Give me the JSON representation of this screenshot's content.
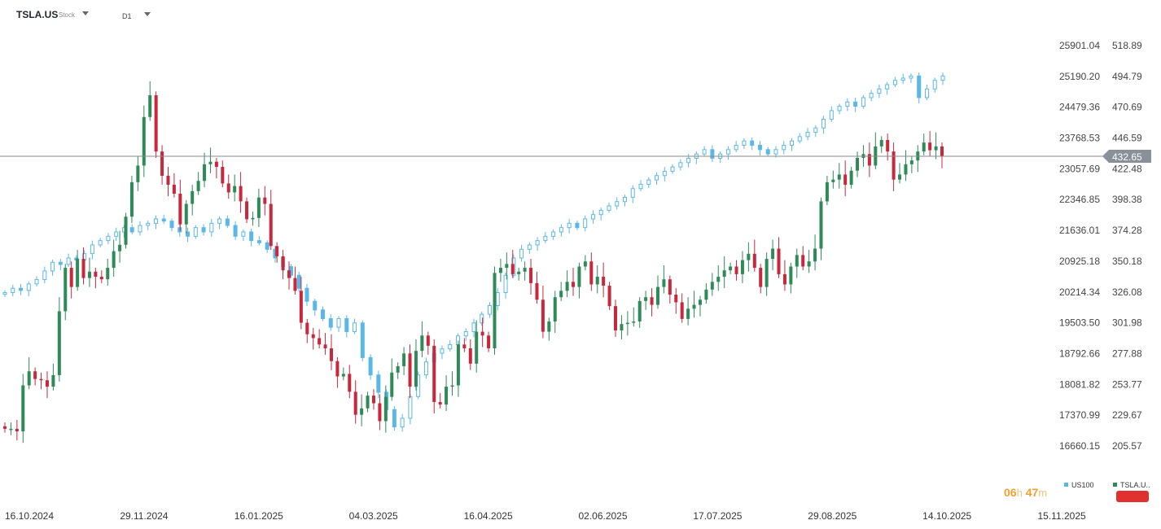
{
  "header": {
    "symbol": "TSLA.US",
    "symbol_type": "Stock",
    "timeframe": "D1"
  },
  "countdown": {
    "hours": "06",
    "h_unit": "h",
    "minutes": "47",
    "m_unit": "m"
  },
  "colors": {
    "up": "#2e8b57",
    "down": "#c8283c",
    "compare": "#5bb8e6",
    "price_line": "#8a8a8a",
    "label_bg": "#8a9099",
    "timer": "#f0a030",
    "badge": "#e03030"
  },
  "chart_data": {
    "type": "candlestick",
    "x_tick_labels": [
      "16.10.2024",
      "29.11.2024",
      "16.01.2025",
      "04.03.2025",
      "16.04.2025",
      "02.06.2025",
      "17.07.2025",
      "29.08.2025",
      "14.10.2025",
      "15.11.2025"
    ],
    "y_left_ticks": [
      "25901.04",
      "25190.20",
      "24479.36",
      "23768.53",
      "23057.69",
      "22346.85",
      "21636.01",
      "20925.18",
      "20214.34",
      "19503.50",
      "18792.66",
      "18081.82",
      "17370.99",
      "16660.15"
    ],
    "y_right_ticks": [
      "518.89",
      "494.79",
      "470.69",
      "446.59",
      "422.48",
      "398.38",
      "374.28",
      "350.18",
      "326.08",
      "301.98",
      "277.88",
      "253.77",
      "229.67",
      "205.57"
    ],
    "last_price_label": "432.65",
    "last_price": 432.65,
    "legend": [
      {
        "name": "US100",
        "color": "#5bb8e6"
      },
      {
        "name": "TSLA.U..",
        "color": "#2e8b57"
      }
    ],
    "series": [
      {
        "name": "TSLA.US",
        "scale": "right",
        "closes_approx": [
          219,
          219,
          217,
          253,
          264,
          258,
          257,
          252,
          261,
          311,
          345,
          330,
          352,
          337,
          342,
          338,
          336,
          345,
          358,
          363,
          385,
          412,
          425,
          463,
          480,
          436,
          417,
          410,
          403,
          379,
          395,
          405,
          413,
          426,
          428,
          424,
          411,
          404,
          409,
          397,
          383,
          384,
          400,
          395,
          362,
          354,
          343,
          337,
          327,
          302,
          293,
          290,
          285,
          282,
          272,
          260,
          262,
          248,
          230,
          235,
          245,
          239,
          225,
          244,
          263,
          268,
          278,
          252,
          280,
          292,
          284,
          240,
          238,
          252,
          253,
          285,
          282,
          270,
          295,
          292,
          282,
          341,
          345,
          348,
          340,
          342,
          345,
          333,
          320,
          295,
          303,
          322,
          327,
          334,
          330,
          346,
          350,
          332,
          338,
          331,
          315,
          296,
          301,
          302,
          303,
          319,
          322,
          316,
          330,
          336,
          324,
          318,
          305,
          313,
          316,
          320,
          328,
          334,
          338,
          343,
          346,
          340,
          351,
          356,
          345,
          330,
          352,
          360,
          340,
          332,
          346,
          355,
          346,
          350,
          360,
          397,
          412,
          414,
          418,
          410,
          421,
          431,
          434,
          425,
          440,
          445,
          436,
          414,
          418,
          426,
          429,
          436,
          443,
          437,
          440,
          432
        ]
      },
      {
        "name": "US100",
        "scale": "left",
        "closes_approx": [
          20200,
          20300,
          20250,
          20400,
          20500,
          20700,
          20900,
          20850,
          21000,
          20950,
          21100,
          21300,
          21400,
          21500,
          21600,
          21700,
          21600,
          21750,
          21800,
          21900,
          21850,
          21700,
          21600,
          21500,
          21700,
          21600,
          21800,
          21900,
          21750,
          21500,
          21600,
          21400,
          21350,
          21200,
          21000,
          20800,
          20600,
          20300,
          20000,
          19800,
          19600,
          19400,
          19600,
          19300,
          19500,
          18700,
          18300,
          17900,
          17500,
          17100,
          17300,
          17800,
          18300,
          18600,
          18800,
          18900,
          19000,
          19200,
          19300,
          19500,
          19700,
          19900,
          20200,
          20600,
          21000,
          21200,
          21300,
          21400,
          21500,
          21600,
          21700,
          21800,
          21700,
          21900,
          22000,
          22100,
          22200,
          22300,
          22400,
          22600,
          22700,
          22800,
          22900,
          23000,
          23100,
          23200,
          23300,
          23400,
          23500,
          23300,
          23400,
          23500,
          23600,
          23700,
          23600,
          23500,
          23400,
          23500,
          23600,
          23700,
          23800,
          23900,
          24000,
          24200,
          24400,
          24500,
          24600,
          24500,
          24700,
          24800,
          24900,
          25000,
          25100,
          25150,
          25200,
          24700,
          24900,
          25100,
          25200
        ]
      }
    ],
    "grid": false
  }
}
